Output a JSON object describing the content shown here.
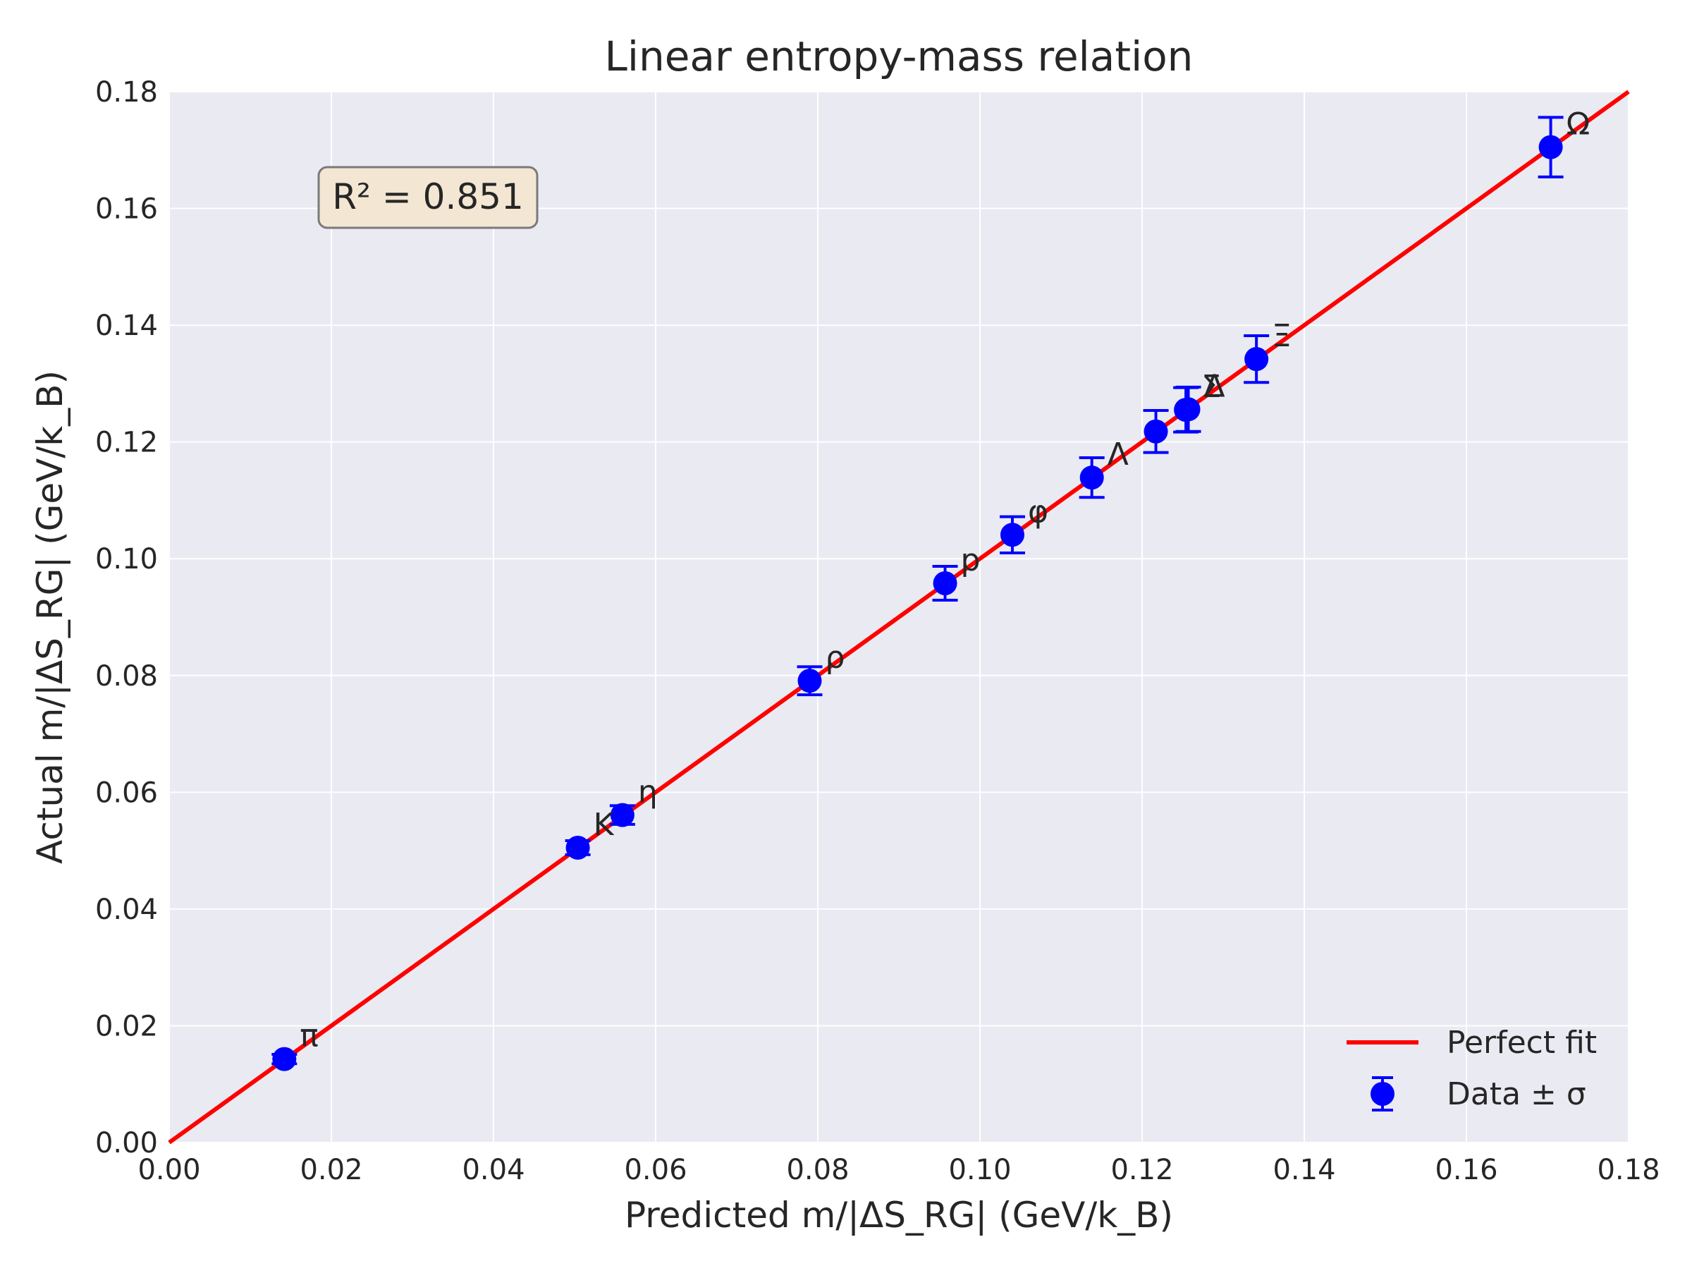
{
  "chart_data": {
    "type": "scatter",
    "title": "Linear entropy-mass relation",
    "xlabel": "Predicted m/|ΔS_RG| (GeV/k_B)",
    "ylabel": "Actual m/|ΔS_RG| (GeV/k_B)",
    "xlim": [
      0.0,
      0.18
    ],
    "ylim": [
      0.0,
      0.18
    ],
    "x_ticks": [
      "0.00",
      "0.02",
      "0.04",
      "0.06",
      "0.08",
      "0.10",
      "0.12",
      "0.14",
      "0.16",
      "0.18"
    ],
    "y_ticks": [
      "0.00",
      "0.02",
      "0.04",
      "0.06",
      "0.08",
      "0.10",
      "0.12",
      "0.14",
      "0.16",
      "0.18"
    ],
    "grid": true,
    "legend_position": "bottom-right",
    "annotation": "R² = 0.851",
    "fit_line": {
      "name": "Perfect fit",
      "x": [
        0.0,
        0.18
      ],
      "y": [
        0.0,
        0.18
      ],
      "color": "#ff0000"
    },
    "series": [
      {
        "name": "Data ± σ",
        "color": "#0000ff",
        "points": [
          {
            "label": "π",
            "x": 0.0142,
            "y": 0.0143,
            "err": 0.0008
          },
          {
            "label": "K",
            "x": 0.0504,
            "y": 0.0505,
            "err": 0.0012
          },
          {
            "label": "η",
            "x": 0.0559,
            "y": 0.0561,
            "err": 0.0016
          },
          {
            "label": "ρ",
            "x": 0.079,
            "y": 0.0791,
            "err": 0.0024
          },
          {
            "label": "p",
            "x": 0.0957,
            "y": 0.0958,
            "err": 0.0029
          },
          {
            "label": "φ",
            "x": 0.104,
            "y": 0.1041,
            "err": 0.0031
          },
          {
            "label": "Λ",
            "x": 0.1138,
            "y": 0.1139,
            "err": 0.0034
          },
          {
            "label": "",
            "x": 0.1217,
            "y": 0.1218,
            "err": 0.0036
          },
          {
            "label": "Σ",
            "x": 0.1254,
            "y": 0.1255,
            "err": 0.0038
          },
          {
            "label": "Δ",
            "x": 0.1257,
            "y": 0.1256,
            "err": 0.0038
          },
          {
            "label": "Ξ",
            "x": 0.1341,
            "y": 0.1342,
            "err": 0.004
          },
          {
            "label": "Ω",
            "x": 0.1704,
            "y": 0.1705,
            "err": 0.0051
          }
        ]
      }
    ]
  }
}
